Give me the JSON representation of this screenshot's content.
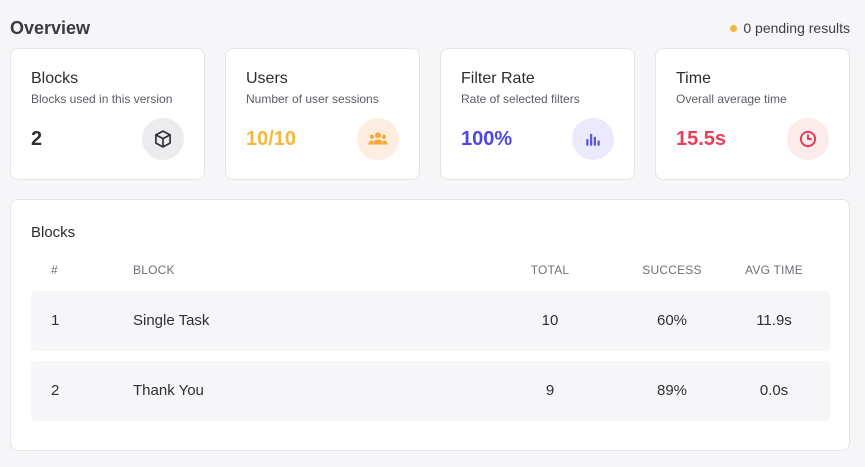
{
  "header": {
    "title": "Overview",
    "pending_text": "0 pending results",
    "pending_color": "#f6b73c"
  },
  "cards": [
    {
      "title": "Blocks",
      "subtitle": "Blocks used in this version",
      "value": "2",
      "value_color": "#2f3035",
      "icon": "cube-icon",
      "icon_color": "#2f3035",
      "icon_bg": "#ececef"
    },
    {
      "title": "Users",
      "subtitle": "Number of user sessions",
      "value": "10/10",
      "value_color": "#f6b73c",
      "icon": "users-icon",
      "icon_color": "#f6a935",
      "icon_bg": "#fdeee2"
    },
    {
      "title": "Filter Rate",
      "subtitle": "Rate of selected filters",
      "value": "100%",
      "value_color": "#4f46e5",
      "icon": "bar-chart-icon",
      "icon_color": "#5b53e6",
      "icon_bg": "#ebeafd"
    },
    {
      "title": "Time",
      "subtitle": "Overall average time",
      "value": "15.5s",
      "value_color": "#ea3d5a",
      "icon": "clock-icon",
      "icon_color": "#ea3d5a",
      "icon_bg": "#fdecec"
    }
  ],
  "blocks_table": {
    "title": "Blocks",
    "columns": {
      "index": "#",
      "block": "BLOCK",
      "total": "TOTAL",
      "success": "SUCCESS",
      "avg_time": "AVG TIME"
    },
    "rows": [
      {
        "index": "1",
        "block": "Single Task",
        "total": "10",
        "success": "60%",
        "avg_time": "11.9s"
      },
      {
        "index": "2",
        "block": "Thank You",
        "total": "9",
        "success": "89%",
        "avg_time": "0.0s"
      }
    ]
  }
}
